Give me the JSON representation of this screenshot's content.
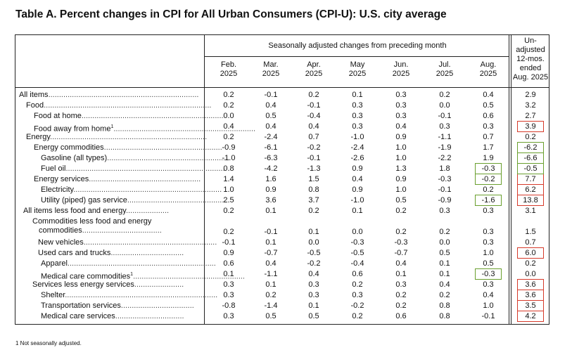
{
  "title": "Table A. Percent changes in CPI for All Urban Consumers (CPI-U): U.S. city average",
  "group_header": "Seasonally adjusted changes from preceding month",
  "columns": [
    {
      "l1": "Feb.",
      "l2": "2025"
    },
    {
      "l1": "Mar.",
      "l2": "2025"
    },
    {
      "l1": "Apr.",
      "l2": "2025"
    },
    {
      "l1": "May",
      "l2": "2025"
    },
    {
      "l1": "Jun.",
      "l2": "2025"
    },
    {
      "l1": "Jul.",
      "l2": "2025"
    },
    {
      "l1": "Aug.",
      "l2": "2025"
    }
  ],
  "unadjusted_header": {
    "l1": "Un-",
    "l2": "adjusted",
    "l3": "12-mos.",
    "l4": "ended",
    "l5": "Aug. 2025"
  },
  "rows": [
    {
      "label": "All items",
      "values": [
        "0.2",
        "-0.1",
        "0.2",
        "0.1",
        "0.3",
        "0.2",
        "0.4"
      ],
      "unadj": "2.9"
    },
    {
      "label": "Food",
      "values": [
        "0.2",
        "0.4",
        "-0.1",
        "0.3",
        "0.3",
        "0.0",
        "0.5"
      ],
      "unadj": "3.2"
    },
    {
      "label": "Food at home",
      "values": [
        "0.0",
        "0.5",
        "-0.4",
        "0.3",
        "0.3",
        "-0.1",
        "0.6"
      ],
      "unadj": "2.7"
    },
    {
      "label": "Food away from home",
      "sup": "1",
      "values": [
        "0.4",
        "0.4",
        "0.4",
        "0.3",
        "0.4",
        "0.3",
        "0.3"
      ],
      "unadj": "3.9"
    },
    {
      "label": "Energy",
      "values": [
        "0.2",
        "-2.4",
        "0.7",
        "-1.0",
        "0.9",
        "-1.1",
        "0.7"
      ],
      "unadj": "0.2"
    },
    {
      "label": "Energy commodities",
      "values": [
        "-0.9",
        "-6.1",
        "-0.2",
        "-2.4",
        "1.0",
        "-1.9",
        "1.7"
      ],
      "unadj": "-6.2"
    },
    {
      "label": "Gasoline (all types)",
      "values": [
        "-1.0",
        "-6.3",
        "-0.1",
        "-2.6",
        "1.0",
        "-2.2",
        "1.9"
      ],
      "unadj": "-6.6"
    },
    {
      "label": "Fuel oil",
      "values": [
        "0.8",
        "-4.2",
        "-1.3",
        "0.9",
        "1.3",
        "1.8",
        "-0.3"
      ],
      "unadj": "-0.5"
    },
    {
      "label": "Energy services",
      "values": [
        "1.4",
        "1.6",
        "1.5",
        "0.4",
        "0.9",
        "-0.3",
        "-0.2"
      ],
      "unadj": "7.7"
    },
    {
      "label": "Electricity",
      "values": [
        "1.0",
        "0.9",
        "0.8",
        "0.9",
        "1.0",
        "-0.1",
        "0.2"
      ],
      "unadj": "6.2"
    },
    {
      "label": "Utility (piped) gas service",
      "values": [
        "2.5",
        "3.6",
        "3.7",
        "-1.0",
        "0.5",
        "-0.9",
        "-1.6"
      ],
      "unadj": "13.8"
    },
    {
      "label": "All items less food and energy",
      "values": [
        "0.2",
        "0.1",
        "0.2",
        "0.1",
        "0.2",
        "0.3",
        "0.3"
      ],
      "unadj": "3.1"
    },
    {
      "label": "Commodities less food and energy",
      "label2": "commodities",
      "values": [
        "0.2",
        "-0.1",
        "0.1",
        "0.0",
        "0.2",
        "0.2",
        "0.3"
      ],
      "unadj": "1.5"
    },
    {
      "label": "New vehicles",
      "values": [
        "-0.1",
        "0.1",
        "0.0",
        "-0.3",
        "-0.3",
        "0.0",
        "0.3"
      ],
      "unadj": "0.7"
    },
    {
      "label": "Used cars and trucks",
      "values": [
        "0.9",
        "-0.7",
        "-0.5",
        "-0.5",
        "-0.7",
        "0.5",
        "1.0"
      ],
      "unadj": "6.0"
    },
    {
      "label": "Apparel",
      "values": [
        "0.6",
        "0.4",
        "-0.2",
        "-0.4",
        "0.4",
        "0.1",
        "0.5"
      ],
      "unadj": "0.2"
    },
    {
      "label": "Medical care commodities",
      "sup": "1",
      "values": [
        "0.1",
        "-1.1",
        "0.4",
        "0.6",
        "0.1",
        "0.1",
        "-0.3"
      ],
      "unadj": "0.0"
    },
    {
      "label": "Services less energy services",
      "values": [
        "0.3",
        "0.1",
        "0.3",
        "0.2",
        "0.3",
        "0.4",
        "0.3"
      ],
      "unadj": "3.6"
    },
    {
      "label": "Shelter",
      "values": [
        "0.3",
        "0.2",
        "0.3",
        "0.3",
        "0.2",
        "0.2",
        "0.4"
      ],
      "unadj": "3.6"
    },
    {
      "label": "Transportation services",
      "values": [
        "-0.8",
        "-1.4",
        "0.1",
        "-0.2",
        "0.2",
        "0.8",
        "1.0"
      ],
      "unadj": "3.5"
    },
    {
      "label": "Medical care services",
      "values": [
        "0.3",
        "0.5",
        "0.5",
        "0.2",
        "0.6",
        "0.8",
        "-0.1"
      ],
      "unadj": "4.2"
    }
  ],
  "footnote": "1 Not seasonally adjusted.",
  "highlight_colors": {
    "red": "#d63a2a",
    "green": "#6a9f2e"
  }
}
